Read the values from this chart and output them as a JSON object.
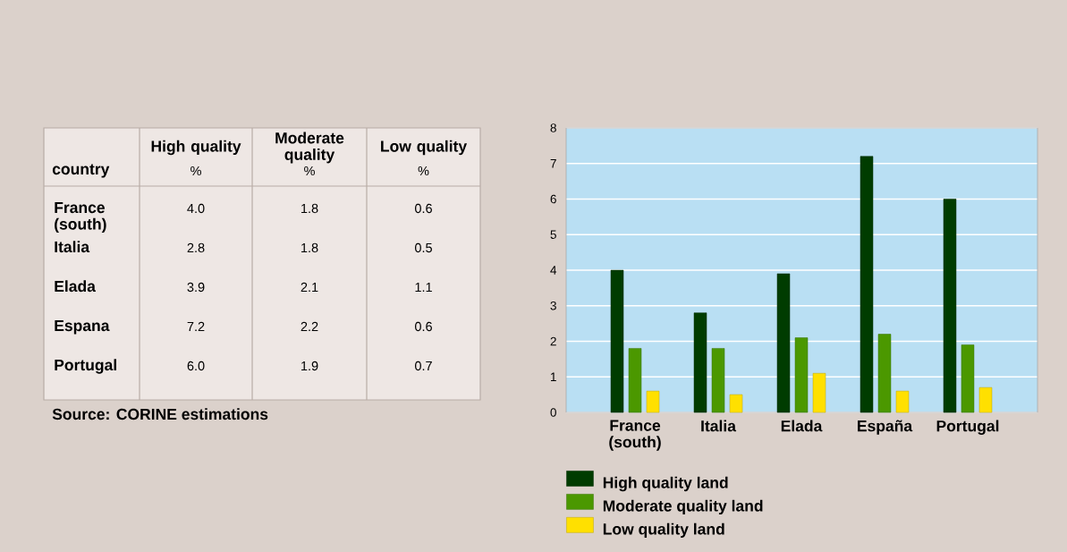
{
  "chart_data": {
    "type": "bar",
    "categories": [
      "France (south)",
      "Italia",
      "Elada",
      "España",
      "Portugal"
    ],
    "series": [
      {
        "name": "High quality land",
        "color": "#003c00",
        "values": [
          4.0,
          2.8,
          3.9,
          7.2,
          6.0
        ]
      },
      {
        "name": "Moderate quality land",
        "color": "#4b9800",
        "values": [
          1.8,
          1.8,
          2.1,
          2.2,
          1.9
        ]
      },
      {
        "name": "Low quality land",
        "color": "#ffe000",
        "values": [
          0.6,
          0.5,
          1.1,
          0.6,
          0.7
        ]
      }
    ],
    "ylim": [
      0,
      8
    ],
    "yticks": [
      0,
      1,
      2,
      3,
      4,
      5,
      6,
      7,
      8
    ],
    "grid": "y",
    "legend": "bottom left",
    "annotations": [
      "country",
      "High quality",
      "%",
      "Moderate quality",
      "%",
      "Low quality",
      "%",
      "France (south)",
      "4.0",
      "1.8",
      "0.6",
      "Italia",
      "2.8",
      "1.8",
      "0.5",
      "Elada",
      "3.9",
      "2.1",
      "1.1",
      "Espana",
      "7.2",
      "2.2",
      "0.6",
      "Portugal",
      "6.0",
      "1.9",
      "0.7",
      "Source: CORINE estimations"
    ]
  }
}
